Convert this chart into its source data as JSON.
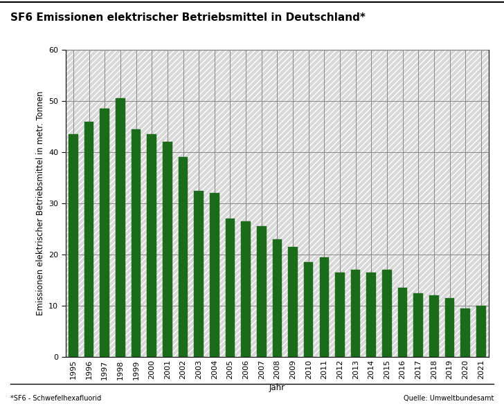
{
  "title": "SF6 Emissionen elektrischer Betriebsmittel in Deutschland*",
  "xlabel": "Jahr",
  "ylabel": "Emissionen elektrischer Betriebsmittel in metr. Tonnen",
  "footnote_left": "*SF6 - Schwefelhexafluorid",
  "footnote_right": "Quelle: Umweltbundesamt",
  "years": [
    1995,
    1996,
    1997,
    1998,
    1999,
    2000,
    2001,
    2002,
    2003,
    2004,
    2005,
    2006,
    2007,
    2008,
    2009,
    2010,
    2011,
    2012,
    2013,
    2014,
    2015,
    2016,
    2017,
    2018,
    2019,
    2020,
    2021
  ],
  "values": [
    43.5,
    46.0,
    48.5,
    50.5,
    44.5,
    43.5,
    42.0,
    39.0,
    32.5,
    32.0,
    27.0,
    26.5,
    25.5,
    23.0,
    21.5,
    18.5,
    19.5,
    16.5,
    17.0,
    16.5,
    17.0,
    13.5,
    12.5,
    12.0,
    11.5,
    9.5,
    10.0
  ],
  "bar_color": "#1a6b1a",
  "ylim": [
    0,
    60
  ],
  "yticks": [
    0,
    10,
    20,
    30,
    40,
    50,
    60
  ],
  "background_color": "#ffffff",
  "hatch_color": "#d8d8d8",
  "grid_color": "#888888",
  "title_fontsize": 11,
  "axis_label_fontsize": 8.5,
  "tick_fontsize": 8,
  "footnote_fontsize": 7
}
